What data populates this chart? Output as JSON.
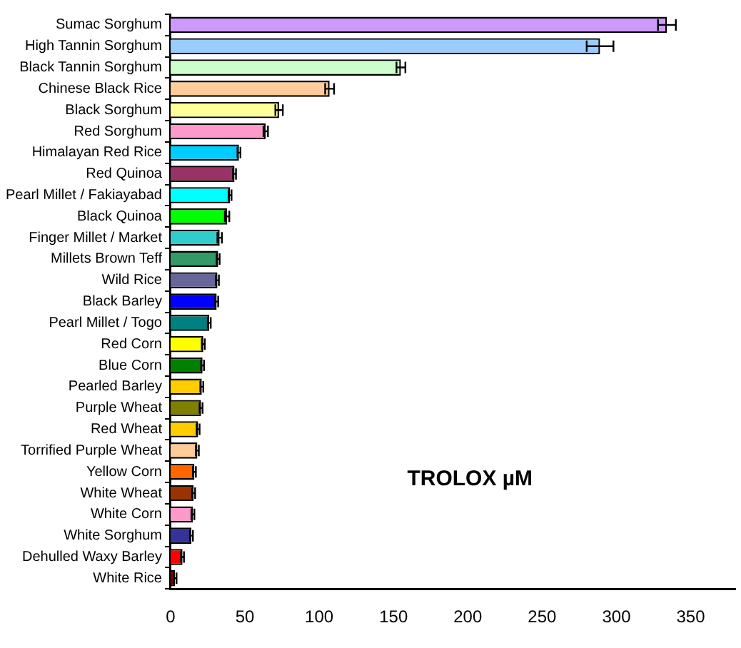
{
  "chart_data": {
    "type": "bar",
    "orientation": "horizontal",
    "categories": [
      "Sumac Sorghum",
      "High Tannin Sorghum",
      "Black Tannin Sorghum",
      "Chinese Black Rice",
      "Black Sorghum",
      "Red Sorghum",
      "Himalayan Red Rice",
      "Red Quinoa",
      "Pearl Millet / Fakiayabad",
      "Black Quinoa",
      "Finger Millet / Market",
      "Millets Brown Teff",
      "Wild Rice",
      "Black Barley",
      "Pearl Millet / Togo",
      "Red Corn",
      "Blue Corn",
      "Pearled Barley",
      "Purple Wheat",
      "Red Wheat",
      "Torrified Purple Wheat",
      "Yellow Corn",
      "White Wheat",
      "White Corn",
      "White Sorghum",
      "Dehulled Waxy Barley",
      "White Rice"
    ],
    "values": [
      334,
      289,
      155,
      107,
      73,
      64,
      46,
      43,
      40,
      38,
      33,
      32,
      31.5,
      31,
      26,
      22,
      21.5,
      21,
      20.5,
      18.5,
      18,
      16,
      15.5,
      15,
      14,
      8,
      3
    ],
    "errors": [
      6,
      9,
      3,
      3,
      2.5,
      1.5,
      1,
      1,
      1,
      1.5,
      1.5,
      1,
      1,
      1,
      1,
      1,
      1,
      1,
      1,
      1,
      1,
      1,
      1,
      1,
      1,
      1,
      1
    ],
    "colors": [
      "#cc99ff",
      "#99ccff",
      "#ccffcc",
      "#ffcc99",
      "#ffff99",
      "#ff99cc",
      "#00ccff",
      "#993366",
      "#00ffff",
      "#00ff00",
      "#33cccc",
      "#339966",
      "#666699",
      "#0000ff",
      "#008080",
      "#ffff00",
      "#008000",
      "#ffcc00",
      "#808000",
      "#ffcc00",
      "#ffcc99",
      "#ff6600",
      "#993300",
      "#ff99cc",
      "#333399",
      "#ff0000",
      "#800000"
    ],
    "xlim": [
      0,
      380
    ],
    "xticks": [
      0,
      50,
      100,
      150,
      200,
      250,
      300,
      350
    ],
    "annotations": [
      "TROLOX µM"
    ],
    "grid": false,
    "legend": false
  }
}
